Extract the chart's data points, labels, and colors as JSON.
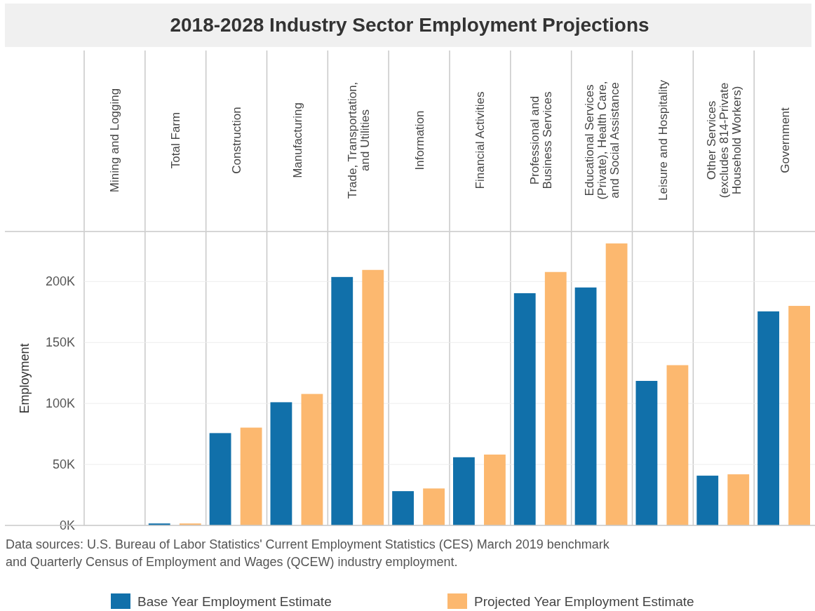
{
  "chart_data": {
    "type": "bar",
    "title": "2018-2028 Industry Sector Employment Projections",
    "categories": [
      "Mining and Logging",
      "Total Farm",
      "Construction",
      "Manufacturing",
      "Trade, Transportation, and Utilities",
      "Information",
      "Financial Activities",
      "Professional and Business Services",
      "Educational Services (Private), Health Care, and Social Assistance",
      "Leisure and Hospitality",
      "Other Services (excludes 814-Private Household Workers)",
      "Government"
    ],
    "series": [
      {
        "name": "Base Year Employment Estimate",
        "color": "#1170aa",
        "values": [
          0,
          1600,
          75700,
          101000,
          203700,
          28100,
          55900,
          190400,
          195100,
          118500,
          40800,
          175500
        ]
      },
      {
        "name": "Projected Year Employment Estimate",
        "color": "#fcb86f",
        "values": [
          0,
          1600,
          80200,
          107800,
          209500,
          30300,
          58100,
          207800,
          231200,
          131400,
          41900,
          180000
        ]
      }
    ],
    "ylabel": "Employment",
    "ylim": [
      0,
      241000
    ],
    "yticks": [
      {
        "value": 0,
        "label": "0K"
      },
      {
        "value": 50000,
        "label": "50K"
      },
      {
        "value": 100000,
        "label": "100K"
      },
      {
        "value": 150000,
        "label": "150K"
      },
      {
        "value": 200000,
        "label": "200K"
      }
    ],
    "grid": "y",
    "legend": "bottom",
    "annotations": [
      "Data sources: U.S. Bureau of Labor Statistics' Current Employment Statistics (CES) March 2019 benchmark and Quarterly Census of Employment and Wages (QCEW) industry employment."
    ]
  }
}
